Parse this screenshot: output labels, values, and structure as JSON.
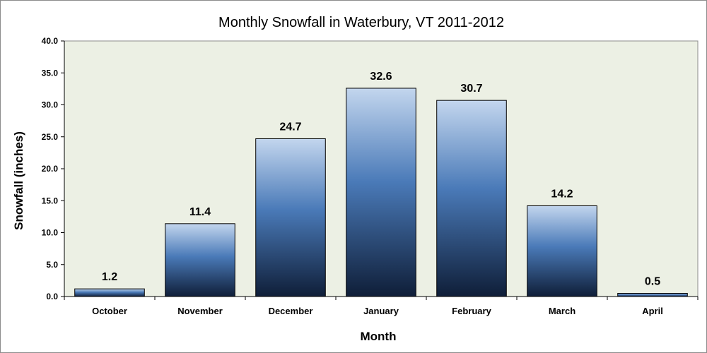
{
  "chart_data": {
    "type": "bar",
    "title": "Monthly Snowfall in Waterbury, VT 2011-2012",
    "xlabel": "Month",
    "ylabel": "Snowfall (inches)",
    "categories": [
      "October",
      "November",
      "December",
      "January",
      "February",
      "March",
      "April"
    ],
    "values": [
      1.2,
      11.4,
      24.7,
      32.6,
      30.7,
      14.2,
      0.5
    ],
    "value_labels": [
      "1.2",
      "11.4",
      "24.7",
      "32.6",
      "30.7",
      "14.2",
      "0.5"
    ],
    "ylim": [
      0,
      40
    ],
    "yticks": [
      "0.0",
      "5.0",
      "10.0",
      "15.0",
      "20.0",
      "25.0",
      "30.0",
      "35.0",
      "40.0"
    ],
    "grid": false,
    "legend": "none",
    "colors": {
      "plot_background": "#ecf0e4",
      "bar_top": "#c3d6ee",
      "bar_mid": "#4a7ab8",
      "bar_bottom": "#0f1e38"
    }
  }
}
